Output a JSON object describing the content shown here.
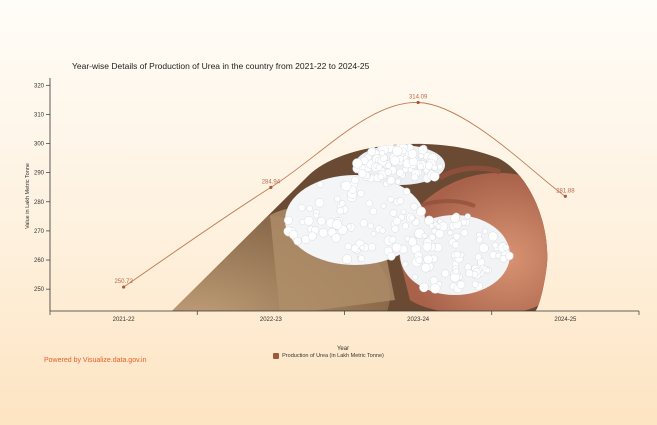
{
  "chart_data": {
    "type": "line",
    "title": "Year-wise Details of Production of Urea in the country from 2021-22 to 2024-25",
    "xlabel": "Year",
    "ylabel": "Value in Lakh Metric Tonne",
    "categories": [
      "2021-22",
      "2022-23",
      "2023-24",
      "2024-25"
    ],
    "series": [
      {
        "name": "Production of Urea (in Lakh Metric Tonne)",
        "values": [
          250.72,
          284.94,
          314.09,
          281.88
        ],
        "data_labels": [
          "250.72",
          "284.94",
          "314.09",
          "281.88"
        ],
        "color": "#c07a52"
      }
    ],
    "ylim": [
      242.5,
      322.5
    ],
    "yticks": [
      250,
      260,
      270,
      280,
      290,
      300,
      310,
      320
    ],
    "grid": false,
    "legend": "bottom",
    "background_image": "urea-granules-in-hand-photo"
  },
  "footer": {
    "credit": "Powered by Visualize.data.gov.in"
  }
}
